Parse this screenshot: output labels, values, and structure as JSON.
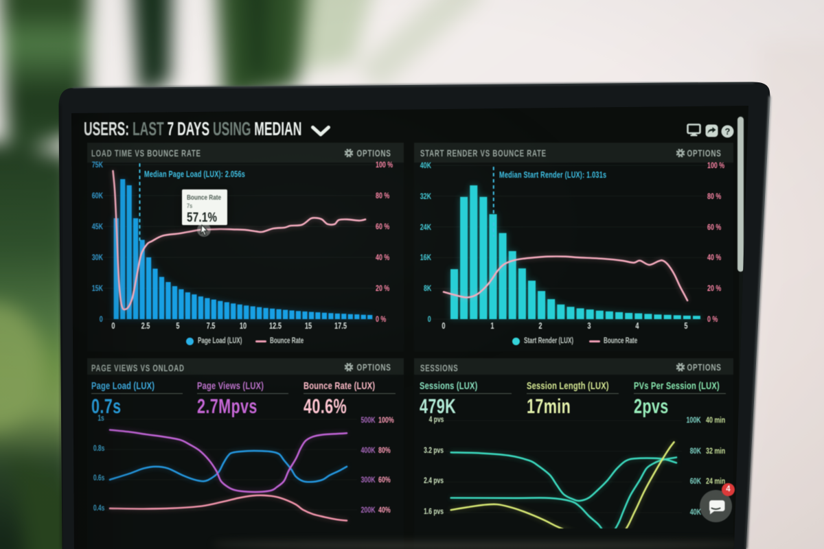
{
  "header": {
    "title_parts": [
      {
        "text": "USERS:",
        "muted": false
      },
      {
        "text": "LAST",
        "muted": true
      },
      {
        "text": "7 DAYS",
        "muted": false
      },
      {
        "text": "USING",
        "muted": true
      },
      {
        "text": "MEDIAN",
        "muted": false
      }
    ],
    "toolbar_icons": [
      "display",
      "share",
      "help"
    ],
    "help_glyph": "?"
  },
  "panels": [
    {
      "title": "LOAD TIME VS BOUNCE RATE",
      "options_label": "OPTIONS",
      "legend": [
        {
          "marker": "dot",
          "color": "#29b2e8",
          "label": "Page Load (LUX)"
        },
        {
          "marker": "line",
          "color": "#f2a0b8",
          "label": "Bounce Rate"
        }
      ],
      "tooltip": {
        "title": "Bounce Rate",
        "subtitle": "7s",
        "value": "57.1%"
      }
    },
    {
      "title": "START RENDER VS BOUNCE RATE",
      "options_label": "OPTIONS",
      "legend": [
        {
          "marker": "dot",
          "color": "#35d4da",
          "label": "Start Render (LUX)"
        },
        {
          "marker": "line",
          "color": "#f2a0b8",
          "label": "Bounce Rate"
        }
      ]
    },
    {
      "title": "PAGE VIEWS VS ONLOAD",
      "options_label": "OPTIONS",
      "metrics": [
        {
          "label": "Page Load (LUX)",
          "value": "0.7s",
          "label_color": "#41b1e6",
          "value_color": "#2aa3e4"
        },
        {
          "label": "Page Views (LUX)",
          "value": "2.7Mpvs",
          "label_color": "#bd73cc",
          "value_color": "#c667d6"
        },
        {
          "label": "Bounce Rate (LUX)",
          "value": "40.6%",
          "label_color": "#ffbdca",
          "value_color": "#ffc6d2"
        }
      ]
    },
    {
      "title": "SESSIONS",
      "options_label": "OPTIONS",
      "metrics": [
        {
          "label": "Sessions (LUX)",
          "value": "479K",
          "label_color": "#8be4c2",
          "value_color": "#b4ecd8"
        },
        {
          "label": "Session Length (LUX)",
          "value": "17min",
          "label_color": "#d9ec96",
          "value_color": "#e4f2ac"
        },
        {
          "label": "PVs Per Session (LUX)",
          "value": "2pvs",
          "label_color": "#8aeab2",
          "value_color": "#99eebc"
        }
      ]
    }
  ],
  "chart_data": [
    {
      "type": "bar+line",
      "title": "LOAD TIME VS BOUNCE RATE",
      "x_ticks": [
        "0",
        "2.5",
        "5",
        "7.5",
        "10",
        "12.5",
        "15",
        "17.5"
      ],
      "x_tick_values": [
        0,
        2.5,
        5,
        7.5,
        10,
        12.5,
        15,
        17.5
      ],
      "y_left": {
        "labels": [
          "75K",
          "60K",
          "45K",
          "30K",
          "15K",
          "0"
        ],
        "max": 75
      },
      "y_right": {
        "labels": [
          "100 %",
          "80 %",
          "60 %",
          "40 %",
          "20 %",
          "0 %"
        ],
        "max": 100
      },
      "bar_series": "Page Load (LUX)",
      "bar_color": "#169fe4",
      "bar_start": 0,
      "bar_step": 0.5,
      "bars": [
        49,
        68,
        65,
        49,
        38.5,
        30,
        24.5,
        20.5,
        18,
        16,
        14.5,
        13,
        12,
        11,
        10.2,
        9.5,
        8.8,
        8.2,
        7.6,
        7.1,
        6.6,
        6.2,
        5.8,
        5.4,
        5.1,
        4.8,
        4.5,
        4.2,
        3.9,
        3.7,
        3.5,
        3.3,
        3.1,
        2.9,
        2.7,
        2.6,
        2.4,
        2.3,
        2.1,
        2.0
      ],
      "line_series": "Bounce Rate",
      "line_color": "#f5abbe",
      "line_points": [
        [
          0.0,
          96
        ],
        [
          0.15,
          82
        ],
        [
          0.3,
          55
        ],
        [
          0.45,
          26
        ],
        [
          0.6,
          12
        ],
        [
          0.75,
          7
        ],
        [
          0.95,
          6.3
        ],
        [
          1.2,
          8
        ],
        [
          1.5,
          14
        ],
        [
          1.85,
          29
        ],
        [
          2.17,
          42
        ],
        [
          2.63,
          48.6
        ],
        [
          3.0,
          50.5
        ],
        [
          3.83,
          54
        ],
        [
          5.13,
          55.5
        ],
        [
          6.1,
          57.0
        ],
        [
          6.67,
          57.8
        ],
        [
          7.0,
          57.9
        ],
        [
          8.2,
          58.3
        ],
        [
          9.2,
          58.1
        ],
        [
          10.16,
          57.8
        ],
        [
          11.0,
          56.8
        ],
        [
          11.47,
          56.5
        ],
        [
          12.33,
          58.7
        ],
        [
          13.2,
          59.3
        ],
        [
          13.65,
          60.5
        ],
        [
          14.53,
          61.1
        ],
        [
          15.19,
          65.1
        ],
        [
          15.6,
          65.5
        ],
        [
          16.06,
          64.6
        ],
        [
          16.49,
          61.5
        ],
        [
          17.04,
          61.5
        ],
        [
          17.35,
          64.2
        ],
        [
          18.0,
          64.6
        ],
        [
          18.9,
          63.8
        ],
        [
          19.4,
          64.6
        ]
      ],
      "median": {
        "x": 2.056,
        "label": "Median Page Load (LUX): 2.056s"
      }
    },
    {
      "type": "bar+line",
      "title": "START RENDER VS BOUNCE RATE",
      "x_ticks": [
        "0",
        "1",
        "2",
        "3",
        "4",
        "5"
      ],
      "x_tick_values": [
        0,
        1,
        2,
        3,
        4,
        5
      ],
      "y_left": {
        "labels": [
          "40K",
          "32K",
          "24K",
          "16K",
          "8K",
          "0"
        ],
        "max": 40
      },
      "y_right": {
        "labels": [
          "100 %",
          "80 %",
          "60 %",
          "40 %",
          "20 %",
          "0 %"
        ],
        "max": 100
      },
      "bar_series": "Start Render (LUX)",
      "bar_color": "#27cfd6",
      "bar_start": 0.12,
      "bar_step": 0.2,
      "bars": [
        13,
        31.8,
        34.8,
        31.8,
        27.3,
        22.4,
        17.7,
        13.2,
        10,
        7.3,
        5.2,
        3.8,
        3.2,
        2.8,
        2.5,
        2.2,
        2.0,
        1.8,
        1.6,
        1.5,
        1.35,
        1.2,
        1.1,
        1.0,
        0.9,
        0.85
      ],
      "line_series": "Bounce Rate",
      "line_color": "#f5abbe",
      "line_points": [
        [
          0.0,
          17.7
        ],
        [
          0.23,
          15.7
        ],
        [
          0.48,
          14.1
        ],
        [
          0.67,
          15.7
        ],
        [
          0.86,
          20.7
        ],
        [
          0.99,
          25.7
        ],
        [
          1.12,
          31.7
        ],
        [
          1.25,
          35.7
        ],
        [
          1.43,
          38.1
        ],
        [
          1.63,
          39.3
        ],
        [
          1.88,
          40.1
        ],
        [
          2.14,
          40.7
        ],
        [
          2.52,
          40.7
        ],
        [
          2.78,
          40.1
        ],
        [
          3.29,
          39.3
        ],
        [
          3.67,
          38.1
        ],
        [
          3.92,
          36.7
        ],
        [
          4.05,
          38.1
        ],
        [
          4.24,
          35.3
        ],
        [
          4.43,
          37.7
        ],
        [
          4.52,
          38.1
        ],
        [
          4.62,
          35.7
        ],
        [
          4.75,
          29.7
        ],
        [
          4.87,
          21.7
        ],
        [
          4.97,
          15.7
        ],
        [
          5.03,
          12.1
        ]
      ],
      "median": {
        "x": 1.031,
        "label": "Median Start Render (LUX): 1.031s"
      }
    },
    {
      "type": "line",
      "title": "PAGE VIEWS VS ONLOAD",
      "y_left": {
        "labels": [
          "1s",
          "0.8s",
          "0.6s",
          "0.4s"
        ],
        "values": [
          1.0,
          0.8,
          0.6,
          0.4
        ],
        "color": "#3da2cc"
      },
      "y_right_col1": {
        "labels": [
          "500K",
          "400K",
          "300K",
          "200K"
        ],
        "color": "#a868bc"
      },
      "y_right_col2": {
        "labels": [
          "100%",
          "80%",
          "60%",
          "40%"
        ],
        "color": "#ff9db8"
      },
      "series": [
        {
          "name": "Page Load (LUX)",
          "color": "#2496dd",
          "points": [
            [
              0.0,
              0.6
            ],
            [
              0.08,
              0.64
            ],
            [
              0.14,
              0.675
            ],
            [
              0.19,
              0.687
            ],
            [
              0.24,
              0.675
            ],
            [
              0.3,
              0.63
            ],
            [
              0.35,
              0.6
            ],
            [
              0.39,
              0.59
            ],
            [
              0.42,
              0.61
            ],
            [
              0.45,
              0.65
            ],
            [
              0.47,
              0.71
            ],
            [
              0.49,
              0.76
            ],
            [
              0.51,
              0.78
            ],
            [
              0.57,
              0.79
            ],
            [
              0.63,
              0.79
            ],
            [
              0.67,
              0.785
            ],
            [
              0.7,
              0.77
            ],
            [
              0.72,
              0.73
            ],
            [
              0.75,
              0.67
            ],
            [
              0.77,
              0.62
            ],
            [
              0.8,
              0.59
            ],
            [
              0.84,
              0.586
            ],
            [
              0.88,
              0.6
            ],
            [
              0.91,
              0.63
            ],
            [
              0.95,
              0.66
            ],
            [
              0.98,
              0.687
            ]
          ]
        },
        {
          "name": "Page Views (LUX)",
          "color": "#bf63d4",
          "points": [
            [
              0.0,
              0.93
            ],
            [
              0.08,
              0.917
            ],
            [
              0.15,
              0.9
            ],
            [
              0.22,
              0.885
            ],
            [
              0.29,
              0.864
            ],
            [
              0.33,
              0.833
            ],
            [
              0.37,
              0.794
            ],
            [
              0.41,
              0.73
            ],
            [
              0.44,
              0.66
            ],
            [
              0.46,
              0.59
            ],
            [
              0.49,
              0.55
            ],
            [
              0.52,
              0.53
            ],
            [
              0.57,
              0.52
            ],
            [
              0.63,
              0.52
            ],
            [
              0.67,
              0.53
            ],
            [
              0.69,
              0.55
            ],
            [
              0.72,
              0.59
            ],
            [
              0.74,
              0.66
            ],
            [
              0.77,
              0.74
            ],
            [
              0.79,
              0.81
            ],
            [
              0.81,
              0.858
            ],
            [
              0.84,
              0.885
            ],
            [
              0.88,
              0.898
            ],
            [
              0.94,
              0.904
            ],
            [
              0.98,
              0.908
            ]
          ]
        },
        {
          "name": "Bounce Rate (LUX)",
          "color": "#f295ac",
          "points": [
            [
              0.0,
              0.41
            ],
            [
              0.14,
              0.407
            ],
            [
              0.26,
              0.411
            ],
            [
              0.38,
              0.425
            ],
            [
              0.47,
              0.455
            ],
            [
              0.53,
              0.478
            ],
            [
              0.59,
              0.494
            ],
            [
              0.64,
              0.496
            ],
            [
              0.69,
              0.486
            ],
            [
              0.73,
              0.465
            ],
            [
              0.77,
              0.435
            ],
            [
              0.8,
              0.4
            ],
            [
              0.84,
              0.372
            ],
            [
              0.89,
              0.352
            ],
            [
              0.94,
              0.336
            ],
            [
              0.98,
              0.329
            ]
          ]
        }
      ],
      "metrics": [
        {
          "label": "Page Load (LUX)",
          "value": "0.7s"
        },
        {
          "label": "Page Views (LUX)",
          "value": "2.7Mpvs"
        },
        {
          "label": "Bounce Rate (LUX)",
          "value": "40.6%"
        }
      ]
    },
    {
      "type": "line",
      "title": "SESSIONS",
      "y_left": {
        "labels": [
          "4 pvs",
          "3.2 pvs",
          "2.4 pvs",
          "1.6 pvs"
        ],
        "values": [
          4.0,
          3.2,
          2.4,
          1.6
        ],
        "color": "#cfe6c0"
      },
      "y_right_col1": {
        "labels": [
          "100K",
          "80K",
          "60K",
          "40K"
        ],
        "color": "#7fd6c8"
      },
      "y_right_col2": {
        "labels": [
          "40 min",
          "32 min",
          "24 min"
        ],
        "color": "#cce59d"
      },
      "series": [
        {
          "name": "Sessions (LUX)",
          "color": "#3cd9be",
          "points": [
            [
              0.02,
              3.17
            ],
            [
              0.15,
              3.15
            ],
            [
              0.27,
              3.09
            ],
            [
              0.36,
              2.96
            ],
            [
              0.4,
              2.82
            ],
            [
              0.45,
              2.58
            ],
            [
              0.48,
              2.32
            ],
            [
              0.51,
              2.08
            ],
            [
              0.55,
              1.95
            ],
            [
              0.58,
              1.91
            ],
            [
              0.62,
              1.99
            ],
            [
              0.66,
              2.2
            ],
            [
              0.7,
              2.44
            ],
            [
              0.74,
              2.74
            ],
            [
              0.78,
              2.95
            ],
            [
              0.82,
              3.01
            ],
            [
              0.9,
              3.02
            ],
            [
              0.95,
              2.99
            ],
            [
              1.0,
              2.9
            ]
          ]
        },
        {
          "name": "PVs Per Session (LUX)",
          "color": "#3cd9be",
          "points": [
            [
              0.02,
              1.985
            ],
            [
              0.3,
              1.98
            ],
            [
              0.45,
              1.98
            ],
            [
              0.54,
              1.9
            ],
            [
              0.58,
              1.76
            ],
            [
              0.62,
              1.51
            ],
            [
              0.66,
              1.3
            ],
            [
              0.68,
              1.15
            ],
            [
              0.7,
              1.08
            ],
            [
              0.73,
              1.15
            ],
            [
              0.75,
              1.35
            ],
            [
              0.77,
              1.64
            ],
            [
              0.8,
              2.05
            ],
            [
              0.84,
              2.44
            ],
            [
              0.87,
              2.75
            ],
            [
              0.9,
              2.88
            ],
            [
              0.93,
              2.96
            ],
            [
              0.96,
              3.0
            ],
            [
              1.0,
              3.04
            ]
          ]
        },
        {
          "name": "Session Length (LUX)",
          "color": "#d7e874",
          "points": [
            [
              0.02,
              1.67
            ],
            [
              0.09,
              1.74
            ],
            [
              0.16,
              1.8
            ],
            [
              0.22,
              1.815
            ],
            [
              0.28,
              1.74
            ],
            [
              0.34,
              1.62
            ],
            [
              0.42,
              1.42
            ],
            [
              0.48,
              1.24
            ],
            [
              0.53,
              1.12
            ],
            [
              0.57,
              1.04
            ],
            [
              0.64,
              0.97
            ],
            [
              0.7,
              1.01
            ],
            [
              0.77,
              1.1
            ],
            [
              0.82,
              1.64
            ],
            [
              0.86,
              2.15
            ],
            [
              0.9,
              2.59
            ],
            [
              0.94,
              3.0
            ],
            [
              0.97,
              3.28
            ],
            [
              0.99,
              3.44
            ]
          ]
        }
      ],
      "metrics": [
        {
          "label": "Sessions (LUX)",
          "value": "479K"
        },
        {
          "label": "Session Length (LUX)",
          "value": "17min"
        },
        {
          "label": "PVs Per Session (LUX)",
          "value": "2pvs"
        }
      ]
    }
  ],
  "chat_widget": {
    "badge": "4"
  },
  "colors": {
    "screen_bg": "#0a0d0c",
    "panel_header_bg": "#191f1c",
    "accent_blue": "#169fe4",
    "accent_teal": "#27cfd6",
    "accent_pink": "#f4a6bb",
    "accent_purple": "#b560c9",
    "accent_green": "#3cd9be",
    "accent_yellow_green": "#d7e874"
  }
}
